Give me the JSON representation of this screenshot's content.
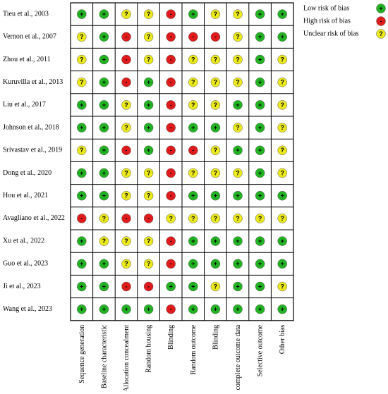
{
  "table": {
    "columns": [
      "Sequence generation",
      "Baseline characteristic",
      "Allocation concealment",
      "Random housing",
      "Blinding",
      "Random outcome",
      "Blinding",
      "Incomplete outcome data",
      "Selective outcome",
      "Other bias"
    ],
    "rows": [
      {
        "study": "Tieu et al., 2003",
        "cells": [
          "+",
          "+",
          "?",
          "?",
          "-",
          "+",
          "?",
          "?",
          "+",
          "+"
        ]
      },
      {
        "study": "Vernon et al., 2007",
        "cells": [
          "?",
          "+",
          "-",
          "?",
          "-",
          "-",
          "-",
          "?",
          "+",
          "+"
        ]
      },
      {
        "study": "Zhou et al., 2011",
        "cells": [
          "?",
          "+",
          "-",
          "?",
          "-",
          "?",
          "?",
          "?",
          "+",
          "?"
        ]
      },
      {
        "study": "Kuruvilla et al., 2013",
        "cells": [
          "?",
          "+",
          "-",
          "+",
          "-",
          "?",
          "?",
          "?",
          "+",
          "?"
        ]
      },
      {
        "study": "Liu et al., 2017",
        "cells": [
          "+",
          "+",
          "?",
          "+",
          "-",
          "?",
          "?",
          "+",
          "+",
          "?"
        ]
      },
      {
        "study": "Johnson et al., 2018",
        "cells": [
          "+",
          "+",
          "?",
          "+",
          "-",
          "+",
          "+",
          "?",
          "+",
          "?"
        ]
      },
      {
        "study": "Srivastav et al., 2019",
        "cells": [
          "?",
          "+",
          "-",
          "+",
          "-",
          "-",
          "?",
          "+",
          "+",
          "?"
        ]
      },
      {
        "study": "Dong et al., 2020",
        "cells": [
          "+",
          "+",
          "?",
          "?",
          "-",
          "?",
          "?",
          "?",
          "+",
          "?"
        ]
      },
      {
        "study": "Hou et al., 2021",
        "cells": [
          "+",
          "+",
          "?",
          "?",
          "-",
          "+",
          "+",
          "+",
          "+",
          "+"
        ]
      },
      {
        "study": "Avagliano et al., 2022",
        "cells": [
          "-",
          "?",
          "-",
          "-",
          "?",
          "?",
          "?",
          "?",
          "?",
          "?"
        ]
      },
      {
        "study": "Xu et al., 2022",
        "cells": [
          "+",
          "?",
          "?",
          "?",
          "-",
          "+",
          "+",
          "+",
          "+",
          "+"
        ]
      },
      {
        "study": "Guo et al., 2023",
        "cells": [
          "+",
          "+",
          "?",
          "?",
          "-",
          "+",
          "+",
          "+",
          "+",
          "+"
        ]
      },
      {
        "study": "Ji et al., 2023",
        "cells": [
          "+",
          "+",
          "-",
          "-",
          "+",
          "+",
          "?",
          "+",
          "+",
          "?"
        ]
      },
      {
        "study": "Wang et al., 2023",
        "cells": [
          "+",
          "+",
          "+",
          "+",
          "-",
          "+",
          "+",
          "+",
          "+",
          "+"
        ]
      }
    ]
  },
  "legend": [
    {
      "label": "Low risk of bias",
      "symbol": "+",
      "color": "#22b322"
    },
    {
      "label": "High risk of bias",
      "symbol": "-",
      "color": "#e01b1b"
    },
    {
      "label": "Unclear risk of bias",
      "symbol": "?",
      "color": "#ecea1c"
    }
  ]
}
